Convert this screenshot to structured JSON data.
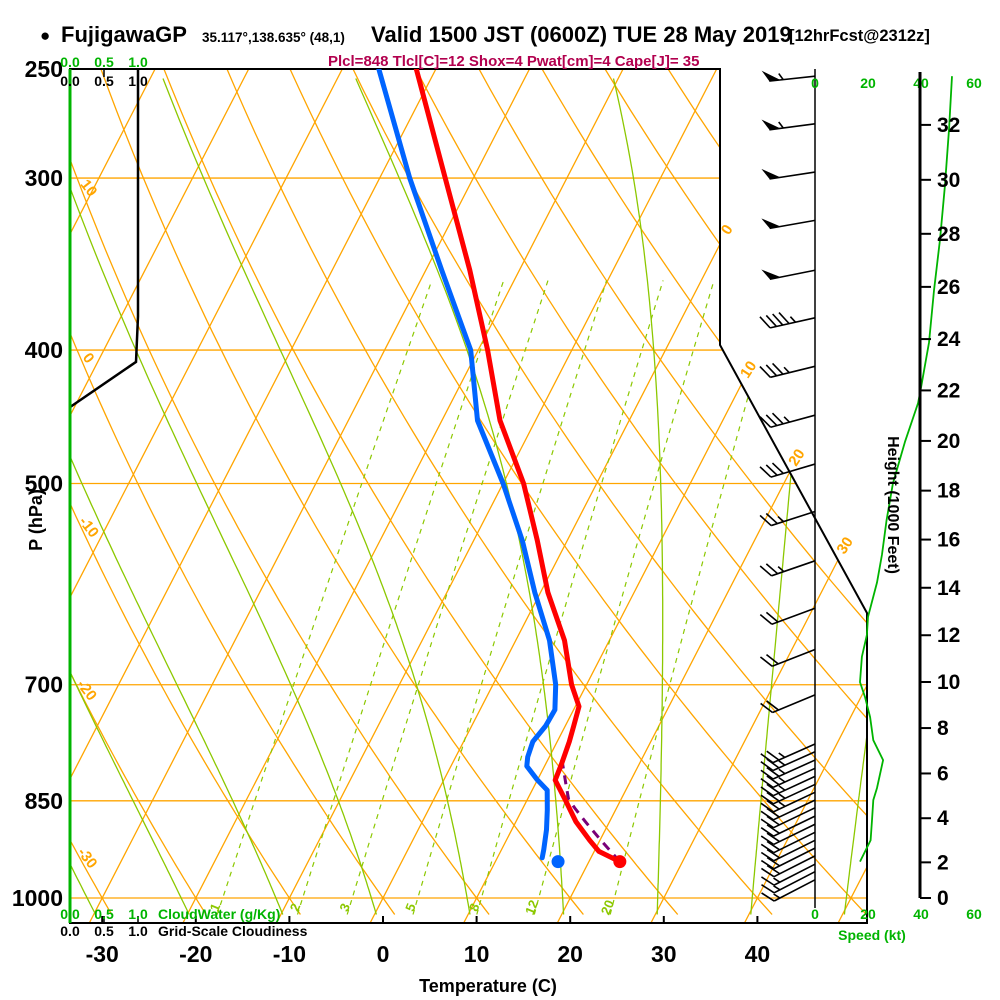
{
  "header": {
    "bullet": "●",
    "station": "FujigawaGP",
    "coords": "35.117°,138.635° (48,1)",
    "valid": "Valid 1500 JST (0600Z) TUE 28 May 2019",
    "fcst": "[12hrFcst@2312z]"
  },
  "subtitle": "Plcl=848 Tlcl[C]=12 Shox=4 Pwat[cm]=4 Cape[J]= 35",
  "colors": {
    "orange": "#ffa500",
    "line_green": "#8cc800",
    "axis_green": "#00b400",
    "temperature_red": "#ff0000",
    "dewpoint_blue": "#0064ff",
    "parcel_purple": "#7a0078",
    "cloudiness_black": "#000000",
    "subtitle_crimson": "#b2004e"
  },
  "axes": {
    "pressure": {
      "label": "P (hPa)",
      "ticks": [
        250,
        300,
        400,
        500,
        700,
        850,
        1000
      ]
    },
    "temperature": {
      "label": "Temperature (C)",
      "ticks": [
        -30,
        -20,
        -10,
        0,
        10,
        20,
        30,
        40
      ]
    },
    "height": {
      "label": "Height (1000 Feet)",
      "ticks": [
        0,
        2,
        4,
        6,
        8,
        10,
        12,
        14,
        16,
        18,
        20,
        22,
        24,
        26,
        28,
        30,
        32
      ]
    },
    "speed": {
      "label": "Speed (kt)",
      "scale": [
        0,
        20,
        40,
        60
      ]
    },
    "cloudwater": {
      "label": "CloudWater (g/Kg)",
      "scale": [
        "0.0",
        "0.5",
        "1.0"
      ]
    },
    "cloudiness": {
      "label": "Grid-Scale Cloudiness",
      "scale": [
        "0.0",
        "0.5",
        "1.0"
      ]
    }
  },
  "grid_labels": {
    "isotherms": [
      0,
      10,
      20,
      30
    ],
    "dry_adiabats": [
      10,
      0,
      -10,
      -20,
      -30
    ],
    "mixing_ratio": [
      1,
      2,
      3,
      5,
      8,
      12,
      20
    ]
  },
  "chart_data": {
    "type": "skewt-log-p-sounding",
    "pressure_range_hpa": [
      250,
      1000
    ],
    "temp_axis_range_c": [
      -35,
      47
    ],
    "isotherm_step_c": 10,
    "dry_adiabat_step_c": 10,
    "moist_adiabat_values_c": [
      -40,
      -30,
      -20,
      -10,
      0,
      10,
      20,
      30,
      40,
      50
    ],
    "mixing_ratio_values_gkg": [
      1,
      2,
      3,
      5,
      8,
      12,
      20
    ],
    "temperature_profile_p_c": [
      [
        250,
        -42.1
      ],
      [
        300,
        -33.0
      ],
      [
        350,
        -25.3
      ],
      [
        400,
        -19.0
      ],
      [
        450,
        -13.8
      ],
      [
        500,
        -7.8
      ],
      [
        550,
        -3.2
      ],
      [
        600,
        0.8
      ],
      [
        650,
        5.2
      ],
      [
        700,
        8.4
      ],
      [
        726,
        10.4
      ],
      [
        750,
        10.9
      ],
      [
        770,
        11.3
      ],
      [
        800,
        11.7
      ],
      [
        821,
        11.9
      ],
      [
        849,
        14.1
      ],
      [
        880,
        16.4
      ],
      [
        908,
        18.9
      ],
      [
        925,
        20.5
      ],
      [
        941,
        23.3
      ]
    ],
    "dewpoint_profile_p_c": [
      [
        250,
        -46.1
      ],
      [
        300,
        -36.8
      ],
      [
        350,
        -28.3
      ],
      [
        400,
        -20.8
      ],
      [
        450,
        -16.2
      ],
      [
        500,
        -10.0
      ],
      [
        550,
        -4.8
      ],
      [
        600,
        -0.6
      ],
      [
        650,
        3.6
      ],
      [
        700,
        6.7
      ],
      [
        730,
        8.0
      ],
      [
        750,
        7.9
      ],
      [
        770,
        7.4
      ],
      [
        790,
        7.7
      ],
      [
        802,
        8.1
      ],
      [
        820,
        9.9
      ],
      [
        835,
        11.6
      ],
      [
        863,
        12.7
      ],
      [
        892,
        13.7
      ],
      [
        922,
        14.5
      ],
      [
        935,
        14.8
      ]
    ],
    "parcel_path_p_c": [
      [
        941,
        23.3
      ],
      [
        907,
        20.0
      ],
      [
        880,
        17.4
      ],
      [
        861,
        15.6
      ],
      [
        848,
        14.4
      ],
      [
        829,
        13.4
      ],
      [
        814,
        12.6
      ],
      [
        799,
        11.8
      ],
      [
        787,
        11.1
      ]
    ],
    "surface_temperature_point_p_c": [
      941,
      23.3
    ],
    "surface_dewpoint_point_p_c": [
      941,
      16.7
    ],
    "wind_speed_profile_p_kt": [
      [
        941,
        17
      ],
      [
        908,
        21
      ],
      [
        878,
        21.5
      ],
      [
        849,
        22
      ],
      [
        832,
        23.4
      ],
      [
        794,
        25.7
      ],
      [
        768,
        22
      ],
      [
        739,
        20.8
      ],
      [
        715,
        18.9
      ],
      [
        697,
        17
      ],
      [
        668,
        17.7
      ],
      [
        644,
        19.6
      ],
      [
        625,
        20
      ],
      [
        590,
        23.4
      ],
      [
        563,
        25.3
      ],
      [
        532,
        27
      ],
      [
        500,
        29.4
      ],
      [
        466,
        34
      ],
      [
        437,
        38.9
      ],
      [
        426,
        40
      ],
      [
        395,
        43
      ],
      [
        362,
        44.9
      ],
      [
        332,
        47.2
      ],
      [
        304,
        49
      ],
      [
        276,
        50.6
      ],
      [
        253,
        51.7
      ]
    ],
    "wind_barbs_p_kt": [
      [
        253,
        55
      ],
      [
        274,
        55
      ],
      [
        297,
        50
      ],
      [
        322,
        50
      ],
      [
        350,
        50
      ],
      [
        379,
        45
      ],
      [
        411,
        35
      ],
      [
        446,
        35
      ],
      [
        484,
        30
      ],
      [
        524,
        25
      ],
      [
        569,
        25
      ],
      [
        616,
        20
      ],
      [
        660,
        20
      ],
      [
        712,
        20
      ],
      [
        773,
        25
      ],
      [
        783,
        25
      ],
      [
        794,
        25
      ],
      [
        805,
        25
      ],
      [
        816,
        25
      ],
      [
        827,
        25
      ],
      [
        838,
        25
      ],
      [
        849,
        20
      ],
      [
        860,
        20
      ],
      [
        872,
        20
      ],
      [
        884,
        20
      ],
      [
        896,
        20
      ],
      [
        908,
        20
      ],
      [
        920,
        20
      ],
      [
        932,
        20
      ],
      [
        945,
        15
      ],
      [
        957,
        15
      ],
      [
        970,
        15
      ]
    ],
    "cloudiness_profile_p_frac": [
      [
        250,
        1.0
      ],
      [
        378,
        1.0
      ],
      [
        408,
        0.97
      ],
      [
        440,
        0.0
      ]
    ],
    "cloudwater_profile_p_gkg": [
      [
        250,
        0.0
      ],
      [
        1000,
        0.0
      ]
    ]
  }
}
